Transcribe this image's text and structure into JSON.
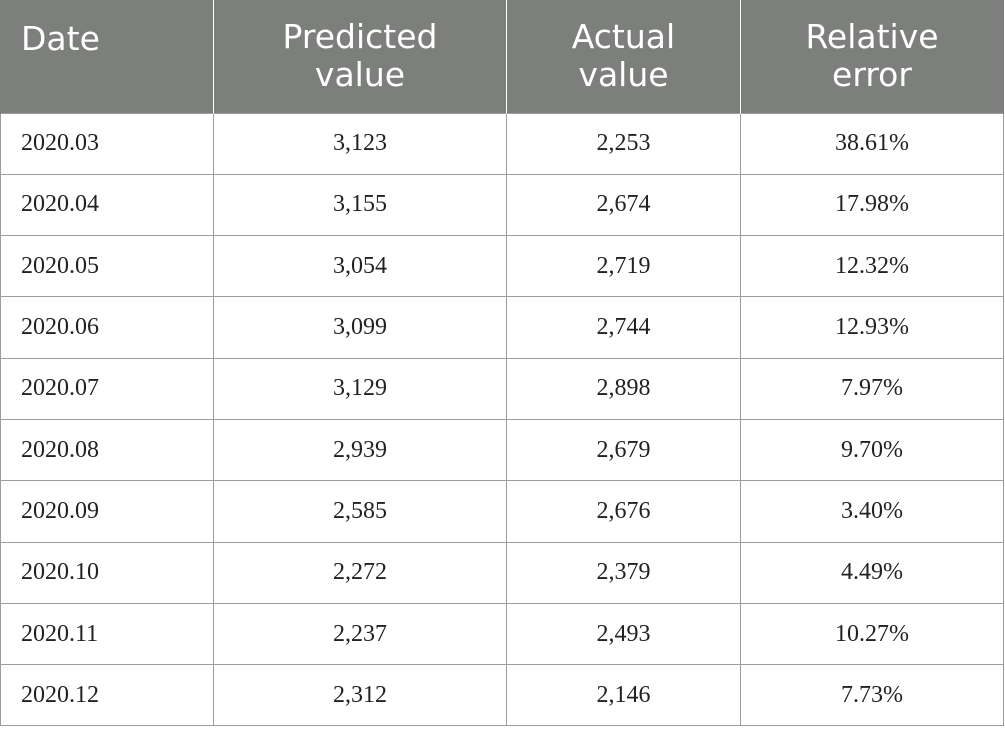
{
  "table": {
    "headers": [
      {
        "line1": "Date",
        "line2": ""
      },
      {
        "line1": "Predicted",
        "line2": "value"
      },
      {
        "line1": "Actual",
        "line2": "value"
      },
      {
        "line1": "Relative",
        "line2": "error"
      }
    ],
    "rows": [
      [
        "2020.03",
        "3,123",
        "2,253",
        "38.61%"
      ],
      [
        "2020.04",
        "3,155",
        "2,674",
        "17.98%"
      ],
      [
        "2020.05",
        "3,054",
        "2,719",
        "12.32%"
      ],
      [
        "2020.06",
        "3,099",
        "2,744",
        "12.93%"
      ],
      [
        "2020.07",
        "3,129",
        "2,898",
        "7.97%"
      ],
      [
        "2020.08",
        "2,939",
        "2,679",
        "9.70%"
      ],
      [
        "2020.09",
        "2,585",
        "2,676",
        "3.40%"
      ],
      [
        "2020.10",
        "2,272",
        "2,379",
        "4.49%"
      ],
      [
        "2020.11",
        "2,237",
        "2,493",
        "10.27%"
      ],
      [
        "2020.12",
        "2,312",
        "2,146",
        "7.73%"
      ]
    ]
  }
}
